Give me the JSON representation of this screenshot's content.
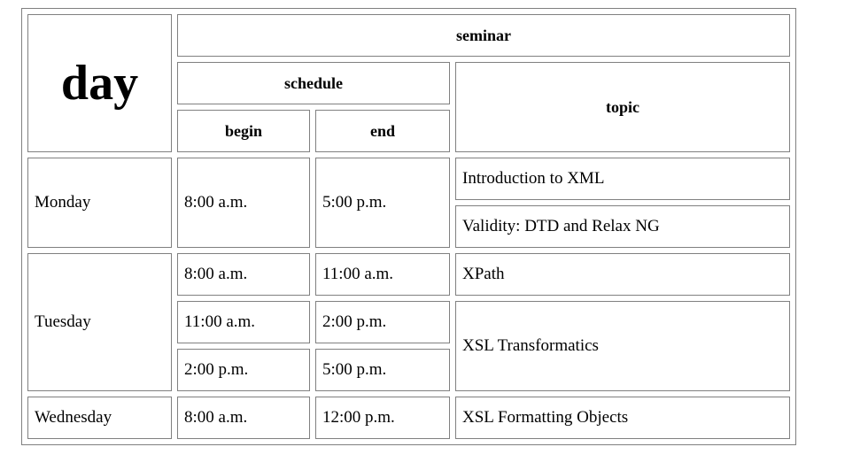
{
  "headers": {
    "day": "day",
    "seminar": "seminar",
    "schedule": "schedule",
    "topic": "topic",
    "begin": "begin",
    "end": "end"
  },
  "days": {
    "monday": "Monday",
    "tuesday": "Tuesday",
    "wednesday": "Wednesday"
  },
  "rows": {
    "monday": {
      "begin": "8:00 a.m.",
      "end": "5:00 p.m.",
      "topic_1": "Introduction to XML",
      "topic_2": "Validity: DTD and Relax NG"
    },
    "tuesday_1": {
      "begin": "8:00 a.m.",
      "end": "11:00 a.m.",
      "topic": "XPath"
    },
    "tuesday_2": {
      "begin": "11:00 a.m.",
      "end": "2:00 p.m.",
      "topic": "XSL Transformatics"
    },
    "tuesday_3": {
      "begin": "2:00 p.m.",
      "end": "5:00 p.m."
    },
    "wednesday": {
      "begin": "8:00 a.m.",
      "end": "12:00 p.m.",
      "topic": "XSL Formatting Objects"
    }
  }
}
